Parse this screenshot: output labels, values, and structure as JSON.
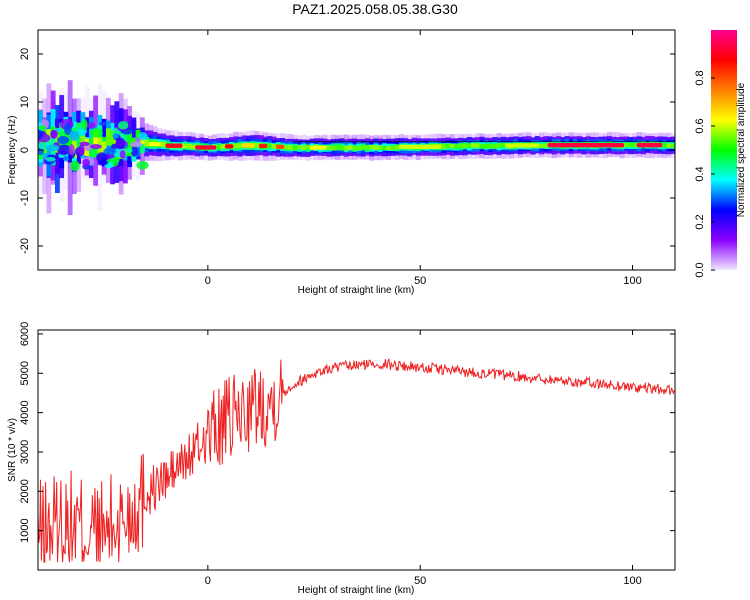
{
  "title": "PAZ1.2025.058.05.38.G30",
  "chart_data": [
    {
      "type": "heatmap",
      "title": "PAZ1.2025.058.05.38.G30",
      "xlabel": "Height of straight line (km)",
      "ylabel": "Frequency (Hz)",
      "xlim": [
        -40,
        110
      ],
      "ylim": [
        -25,
        25
      ],
      "xticks": [
        "0",
        "50",
        "100"
      ],
      "yticks": [
        "-20",
        "-10",
        "0",
        "10",
        "20"
      ],
      "colorbar": {
        "label": "Normalized spectral amplitude",
        "range": [
          0,
          1
        ],
        "ticks": [
          "0.0",
          "0.2",
          "0.4",
          "0.6",
          "0.8"
        ],
        "colormap": [
          "#f0e6ff",
          "#8b00ff",
          "#0000ff",
          "#00ffff",
          "#00ff00",
          "#ffff00",
          "#ff7f00",
          "#ff0000",
          "#ff0090"
        ]
      },
      "ridge": {
        "x": [
          -40,
          -30,
          -20,
          -15,
          -10,
          0,
          10,
          20,
          40,
          60,
          80,
          100,
          110
        ],
        "center_freq": [
          1.5,
          2,
          1.5,
          1.5,
          1,
          0.5,
          1,
          0.5,
          0.5,
          0.8,
          1,
          1,
          1
        ],
        "spread_hz": [
          4,
          4,
          3.5,
          1.5,
          1.2,
          1,
          1.2,
          1,
          1,
          1,
          1,
          1,
          1
        ]
      }
    },
    {
      "type": "line",
      "xlabel": "Height of straight line (km)",
      "ylabel": "SNR (10 * v/v)",
      "xlim": [
        -40,
        110
      ],
      "ylim": [
        0,
        6100
      ],
      "xticks": [
        "0",
        "50",
        "100"
      ],
      "yticks": [
        "1000",
        "2000",
        "3000",
        "4000",
        "5000",
        "6000"
      ],
      "color": "#ee2222",
      "series": [
        {
          "x": [
            -40,
            -35,
            -30,
            -25,
            -20,
            -15,
            -10,
            -5,
            0,
            5,
            10,
            15,
            20,
            25,
            30,
            35,
            40,
            45,
            50,
            55,
            60,
            65,
            70,
            75,
            80,
            85,
            90,
            95,
            100,
            105,
            110
          ],
          "values": [
            900,
            1200,
            1100,
            900,
            1300,
            1900,
            2300,
            2800,
            3400,
            3800,
            4100,
            4300,
            4700,
            5000,
            5150,
            5200,
            5250,
            5200,
            5150,
            5100,
            5050,
            5000,
            4950,
            4900,
            4850,
            4800,
            4750,
            4700,
            4650,
            4600,
            4550
          ]
        }
      ]
    }
  ]
}
